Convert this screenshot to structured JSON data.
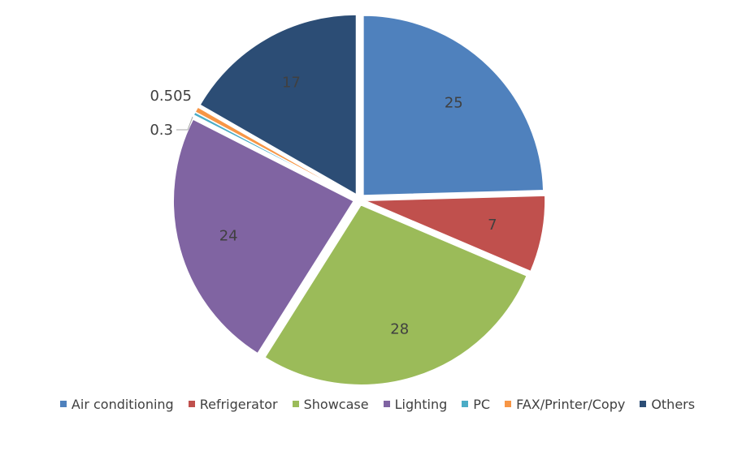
{
  "chart_data": {
    "type": "pie",
    "title": "",
    "categories": [
      "Air conditioning",
      "Refrigerator",
      "Showcase",
      "Lighting",
      "PC",
      "FAX/Printer/Copy",
      "Others"
    ],
    "values": [
      25,
      7,
      28,
      24,
      0.3,
      0.505,
      17
    ],
    "data_labels": [
      "25",
      "7",
      "28",
      "24",
      "0.3",
      "0.505",
      "17"
    ],
    "colors": [
      "#4F81BD",
      "#C0504D",
      "#9BBB59",
      "#8064A2",
      "#4BACC6",
      "#F79646",
      "#2C4D75"
    ],
    "exploded": true,
    "legend": "bottom"
  }
}
